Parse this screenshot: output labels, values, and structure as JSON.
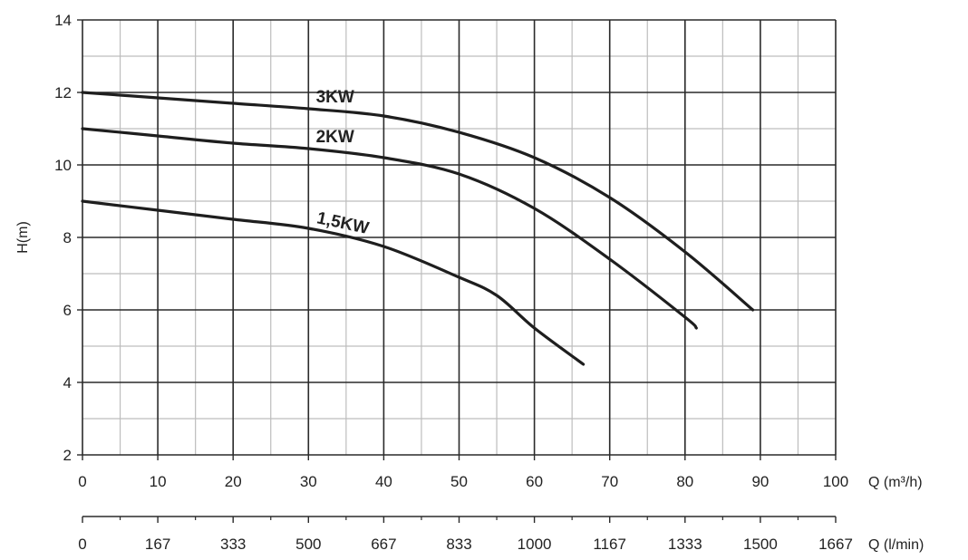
{
  "chart_data": {
    "type": "line",
    "ylabel": "H(m)",
    "xlabel": "Q (m³/h)",
    "xlabel_secondary": "Q (l/min)",
    "xlim": [
      0,
      100
    ],
    "ylim": [
      2,
      14
    ],
    "x_ticks": [
      "0",
      "10",
      "20",
      "30",
      "40",
      "50",
      "60",
      "70",
      "80",
      "90",
      "100"
    ],
    "x_ticks_secondary": [
      "0",
      "167",
      "333",
      "500",
      "667",
      "833",
      "1000",
      "1167",
      "1333",
      "1500",
      "1667"
    ],
    "y_ticks": [
      "2",
      "4",
      "6",
      "8",
      "10",
      "12",
      "14"
    ],
    "grid": true,
    "series": [
      {
        "name": "3KW",
        "x": [
          0,
          10,
          20,
          30,
          40,
          50,
          60,
          70,
          80,
          89
        ],
        "y": [
          12.0,
          11.85,
          11.7,
          11.55,
          11.35,
          10.9,
          10.2,
          9.1,
          7.6,
          6.0
        ]
      },
      {
        "name": "2KW",
        "x": [
          0,
          10,
          20,
          30,
          40,
          50,
          60,
          70,
          80,
          81.5
        ],
        "y": [
          11.0,
          10.8,
          10.6,
          10.45,
          10.2,
          9.75,
          8.8,
          7.4,
          5.8,
          5.5
        ]
      },
      {
        "name": "1,5KW",
        "x": [
          0,
          10,
          20,
          30,
          40,
          50,
          55,
          60,
          66.5
        ],
        "y": [
          9.0,
          8.75,
          8.5,
          8.25,
          7.75,
          6.9,
          6.4,
          5.5,
          4.5
        ]
      }
    ]
  }
}
